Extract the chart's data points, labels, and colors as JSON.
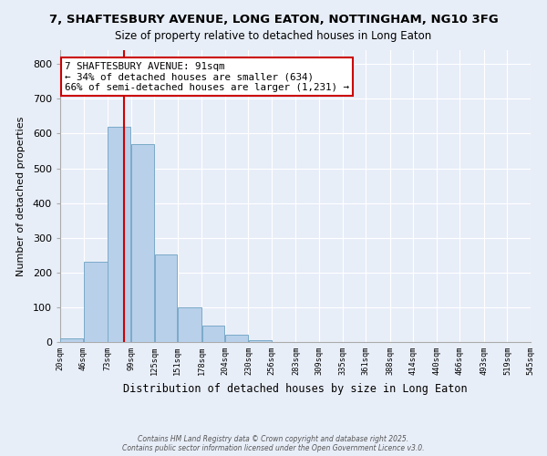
{
  "title": "7, SHAFTESBURY AVENUE, LONG EATON, NOTTINGHAM, NG10 3FG",
  "subtitle": "Size of property relative to detached houses in Long Eaton",
  "xlabel": "Distribution of detached houses by size in Long Eaton",
  "ylabel": "Number of detached properties",
  "bar_counts": [
    10,
    232,
    620,
    570,
    252,
    100,
    46,
    20,
    5,
    1,
    0,
    0,
    0,
    0,
    0,
    0,
    0,
    0,
    0,
    0
  ],
  "bin_edges": [
    20,
    46,
    73,
    99,
    125,
    151,
    178,
    204,
    230,
    256,
    283,
    309,
    335,
    361,
    388,
    414,
    440,
    466,
    493,
    519,
    545
  ],
  "tick_labels": [
    "20sqm",
    "46sqm",
    "73sqm",
    "99sqm",
    "125sqm",
    "151sqm",
    "178sqm",
    "204sqm",
    "230sqm",
    "256sqm",
    "283sqm",
    "309sqm",
    "335sqm",
    "361sqm",
    "388sqm",
    "414sqm",
    "440sqm",
    "466sqm",
    "493sqm",
    "519sqm",
    "545sqm"
  ],
  "bar_color": "#b8d0ea",
  "bar_edge_color": "#7aaac8",
  "vline_x": 91,
  "vline_color": "#cc0000",
  "annotation_title": "7 SHAFTESBURY AVENUE: 91sqm",
  "annotation_line1": "← 34% of detached houses are smaller (634)",
  "annotation_line2": "66% of semi-detached houses are larger (1,231) →",
  "annotation_box_color": "#cc0000",
  "ylim": [
    0,
    840
  ],
  "yticks": [
    0,
    100,
    200,
    300,
    400,
    500,
    600,
    700,
    800
  ],
  "bg_color": "#e8eef8",
  "grid_color": "#ffffff",
  "footer1": "Contains HM Land Registry data © Crown copyright and database right 2025.",
  "footer2": "Contains public sector information licensed under the Open Government Licence v3.0."
}
